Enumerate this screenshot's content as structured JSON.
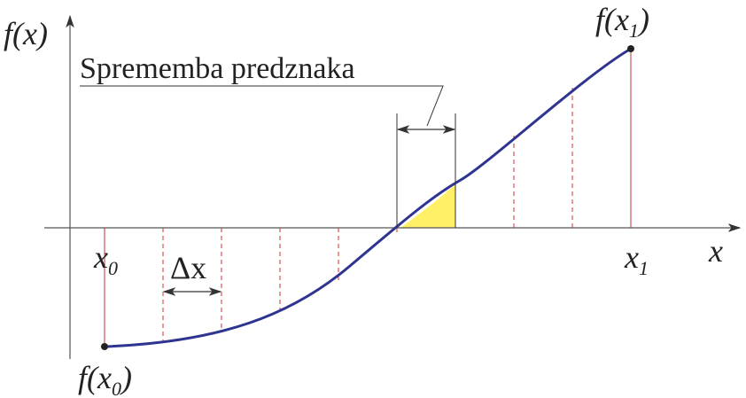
{
  "axes": {
    "y_label": "f(x)",
    "x_label": "x"
  },
  "points": {
    "x0": {
      "var": "x",
      "sub": "0"
    },
    "x1": {
      "var": "x",
      "sub": "1"
    },
    "f_x0": {
      "pre": "f(",
      "var": "x",
      "sub": "0",
      "post": ")"
    },
    "f_x1": {
      "pre": "f(",
      "var": "x",
      "sub": "1",
      "post": ")"
    }
  },
  "step_label": "Δx",
  "sign_change_label": "Sprememba predznaka"
}
